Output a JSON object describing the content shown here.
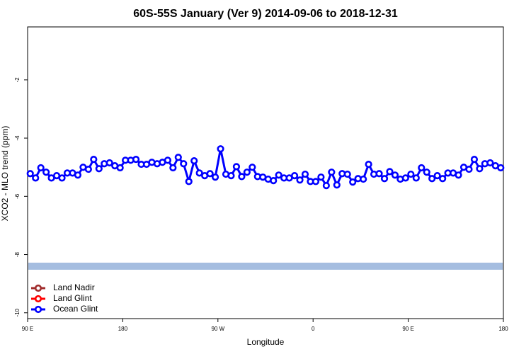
{
  "chart_data": {
    "type": "line",
    "title": "60S-55S January (Ver 9)   2014-09-06 to 2018-12-31",
    "x_label": "Longitude",
    "y_label": "XCO2 - MLO trend (ppm)",
    "x": [
      92.5,
      97.5,
      102.5,
      107.5,
      112.5,
      117.5,
      122.5,
      127.5,
      132.5,
      137.5,
      142.5,
      147.5,
      152.5,
      157.5,
      162.5,
      167.5,
      172.5,
      177.5,
      182.5,
      187.5,
      192.5,
      197.5,
      202.5,
      207.5,
      212.5,
      217.5,
      222.5,
      227.5,
      232.5,
      237.5,
      242.5,
      247.5,
      252.5,
      257.5,
      262.5,
      267.5,
      272.5,
      277.5,
      282.5,
      287.5,
      292.5,
      297.5,
      302.5,
      307.5,
      312.5,
      317.5,
      322.5,
      327.5,
      332.5,
      337.5,
      342.5,
      347.5,
      352.5,
      357.5,
      362.5,
      367.5,
      372.5,
      377.5,
      382.5,
      387.5,
      392.5,
      397.5,
      402.5,
      407.5,
      412.5,
      417.5,
      422.5,
      427.5,
      432.5,
      437.5,
      442.5,
      447.5,
      452.5,
      457.5,
      462.5,
      467.5,
      472.5,
      477.5,
      482.5,
      487.5,
      492.5,
      497.5,
      502.5,
      507.5,
      512.5,
      517.5,
      522.5,
      527.5,
      532.5,
      537.5
    ],
    "series": [
      {
        "name": "Land Nadir",
        "color": "#a02c2c",
        "values": [
          null,
          null,
          null,
          null,
          null,
          null,
          null,
          null,
          null,
          null,
          null,
          null,
          null,
          null,
          null,
          null,
          null,
          null,
          null,
          null,
          null,
          null,
          null,
          null,
          null,
          null,
          null,
          null,
          null,
          null,
          null,
          null,
          null,
          null,
          null,
          null,
          null,
          null,
          null,
          null,
          null,
          null,
          null,
          null,
          null,
          null,
          null,
          null,
          null,
          null,
          null,
          null,
          null,
          null,
          null,
          null,
          null,
          null,
          null,
          null,
          null,
          null,
          null,
          null,
          null,
          null,
          null,
          null,
          null,
          null,
          null,
          null,
          null,
          null,
          null,
          null,
          null,
          null,
          null,
          null,
          null,
          null,
          null,
          null,
          null,
          null,
          null,
          null,
          null,
          null
        ]
      },
      {
        "name": "Land Glint",
        "color": "#ff0000",
        "values": [
          null,
          null,
          null,
          null,
          null,
          null,
          null,
          null,
          null,
          null,
          null,
          null,
          null,
          null,
          null,
          null,
          null,
          null,
          null,
          null,
          null,
          null,
          null,
          null,
          null,
          null,
          null,
          null,
          null,
          null,
          null,
          null,
          null,
          null,
          null,
          null,
          null,
          null,
          null,
          null,
          null,
          null,
          null,
          null,
          null,
          null,
          null,
          null,
          null,
          null,
          null,
          null,
          null,
          null,
          null,
          null,
          null,
          null,
          null,
          null,
          null,
          null,
          null,
          null,
          null,
          null,
          null,
          null,
          null,
          null,
          null,
          null,
          null,
          null,
          null,
          null,
          null,
          null,
          null,
          null,
          null,
          null,
          null,
          null,
          null,
          null,
          null,
          null,
          null,
          null
        ]
      },
      {
        "name": "Ocean Glint",
        "color": "#0000ff",
        "values": [
          -5.22,
          -5.37,
          -5.02,
          -5.17,
          -5.37,
          -5.29,
          -5.37,
          -5.2,
          -5.2,
          -5.27,
          -5.0,
          -5.07,
          -4.73,
          -5.05,
          -4.88,
          -4.85,
          -4.95,
          -5.02,
          -4.76,
          -4.76,
          -4.73,
          -4.9,
          -4.9,
          -4.83,
          -4.88,
          -4.83,
          -4.76,
          -5.02,
          -4.66,
          -4.88,
          -5.49,
          -4.78,
          -5.2,
          -5.29,
          -5.22,
          -5.34,
          -4.37,
          -5.24,
          -5.29,
          -4.98,
          -5.32,
          -5.17,
          -5.0,
          -5.32,
          -5.34,
          -5.41,
          -5.46,
          -5.27,
          -5.37,
          -5.37,
          -5.29,
          -5.44,
          -5.24,
          -5.49,
          -5.49,
          -5.34,
          -5.63,
          -5.17,
          -5.61,
          -5.22,
          -5.24,
          -5.51,
          -5.39,
          -5.41,
          -4.9,
          -5.24,
          -5.22,
          -5.39,
          -5.15,
          -5.27,
          -5.41,
          -5.37,
          -5.24,
          -5.37,
          -5.02,
          -5.17,
          -5.39,
          -5.29,
          -5.39,
          -5.2,
          -5.2,
          -5.27,
          -5.0,
          -5.07,
          -4.73,
          -5.05,
          -4.88,
          -4.85,
          -4.95,
          -5.02
        ]
      }
    ],
    "reference_band": {
      "value": -8.4,
      "color": "#a5bde0"
    },
    "xlim": [
      90,
      540
    ],
    "xticks": [
      {
        "value": 90,
        "label": "90 E"
      },
      {
        "value": 180,
        "label": "180"
      },
      {
        "value": 270,
        "label": "90 W"
      },
      {
        "value": 360,
        "label": "0"
      },
      {
        "value": 450,
        "label": "90 E"
      },
      {
        "value": 540,
        "label": "180"
      }
    ],
    "ylim": [
      -10.2,
      -0.18
    ],
    "yticks": [
      -2,
      -4,
      -6,
      -8,
      -10
    ],
    "grid": false,
    "legend": "bottom-left"
  }
}
